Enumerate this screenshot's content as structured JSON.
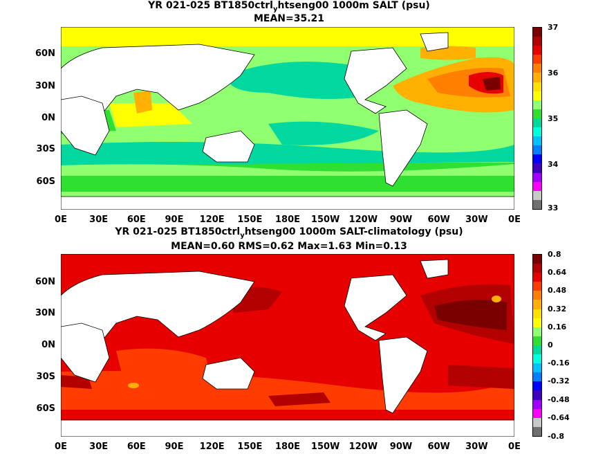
{
  "panel_top": {
    "title_prefix": "YR 021-025 BT1850ctrl",
    "title_sub": "y",
    "title_suffix": "htseng00 1000m SALT (psu)",
    "stats": "MEAN=35.21",
    "lat_labels": [
      "60N",
      "30N",
      "0N",
      "30S",
      "60S"
    ],
    "lon_labels": [
      "0E",
      "30E",
      "60E",
      "90E",
      "120E",
      "150E",
      "180E",
      "150W",
      "120W",
      "90W",
      "60W",
      "30W",
      "0E"
    ],
    "colorbar": {
      "labels": [
        "37",
        "36",
        "35",
        "34",
        "33"
      ],
      "colors": [
        "#7a0000",
        "#b30000",
        "#e60000",
        "#ff3c00",
        "#ff8000",
        "#ffb000",
        "#ffe000",
        "#ffff00",
        "#90ff70",
        "#30e030",
        "#00d8a0",
        "#00ffdd",
        "#00c0ff",
        "#0080ff",
        "#0000ff",
        "#4000c0",
        "#a000ff",
        "#ff00ff",
        "#c8c8c8",
        "#707070"
      ]
    }
  },
  "panel_bottom": {
    "title_prefix": "YR 021-025 BT1850ctrl",
    "title_sub": "y",
    "title_suffix": "htseng00 1000m SALT-climatology (psu)",
    "stats": "MEAN=0.60   RMS=0.62   Max=1.63   Min=0.13",
    "lat_labels": [
      "60N",
      "30N",
      "0N",
      "30S",
      "60S"
    ],
    "lon_labels": [
      "0E",
      "30E",
      "60E",
      "90E",
      "120E",
      "150E",
      "180E",
      "150W",
      "120W",
      "90W",
      "60W",
      "30W",
      "0E"
    ],
    "colorbar": {
      "labels": [
        "0.8",
        "0.64",
        "0.48",
        "0.32",
        "0.16",
        "0",
        "-0.16",
        "-0.32",
        "-0.48",
        "-0.64",
        "-0.8"
      ],
      "colors": [
        "#7a0000",
        "#b30000",
        "#e60000",
        "#ff3c00",
        "#ff8000",
        "#ffb000",
        "#ffe000",
        "#ffff00",
        "#90ff70",
        "#30e030",
        "#00d8a0",
        "#00ffdd",
        "#00c0ff",
        "#0080ff",
        "#0000ff",
        "#4000c0",
        "#a000ff",
        "#ff00ff",
        "#c8c8c8",
        "#707070"
      ]
    }
  }
}
